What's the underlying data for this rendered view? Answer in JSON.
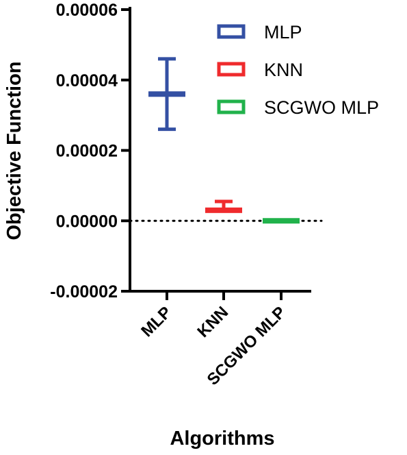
{
  "chart_data": {
    "type": "box",
    "xlabel": "Algorithms",
    "ylabel": "Objective Function",
    "ylim": [
      -2e-05,
      6e-05
    ],
    "yticks": [
      -2e-05,
      0.0,
      2e-05,
      4e-05,
      6e-05
    ],
    "ytick_labels": [
      "-0.00002",
      "0.00000",
      "0.00002",
      "0.00004",
      "0.00006"
    ],
    "categories": [
      "MLP",
      "KNN",
      "SCGWO MLP"
    ],
    "series": [
      {
        "name": "MLP",
        "color": "#3450a3",
        "min": 2.6e-05,
        "q1": 3.55e-05,
        "median": 3.6e-05,
        "q3": 3.65e-05,
        "max": 4.6e-05
      },
      {
        "name": "KNN",
        "color": "#ef2b2d",
        "min": 2.5e-06,
        "q1": 2.5e-06,
        "median": 3e-06,
        "q3": 3.5e-06,
        "max": 5.5e-06
      },
      {
        "name": "SCGWO MLP",
        "color": "#21b24b",
        "min": 0.0,
        "q1": 0.0,
        "median": 0.0,
        "q3": 0.0,
        "max": 0.0
      }
    ],
    "reference_line": {
      "y": 0.0,
      "style": "dotted"
    },
    "legend_position": "top-right",
    "grid": false
  }
}
